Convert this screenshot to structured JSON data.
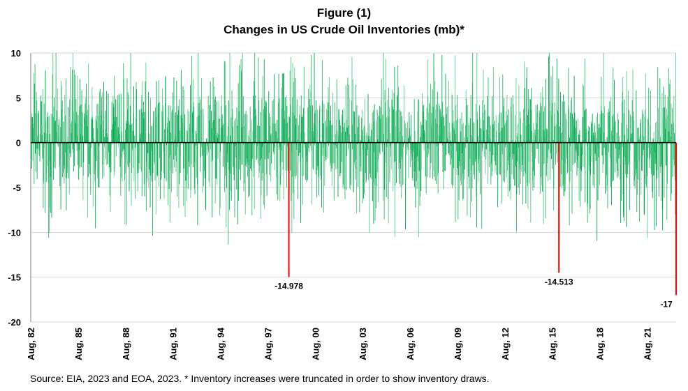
{
  "figure_label": "Figure (1)",
  "source_note": "Source: EIA, 2023 and EOA, 2023. * Inventory increases were truncated in order to show inventory draws.",
  "chart_data": {
    "type": "bar",
    "title": "Changes in US Crude Oil Inventories (mb)*",
    "xlabel": "",
    "ylabel": "",
    "ylim": [
      -20,
      10
    ],
    "yticks": [
      10,
      5,
      0,
      -5,
      -10,
      -15,
      -20
    ],
    "x_range": [
      "1982-08",
      "2023-06"
    ],
    "xtick_labels": [
      "Aug, 82",
      "Aug, 85",
      "Aug, 88",
      "Aug, 91",
      "Aug, 94",
      "Aug, 97",
      "Aug, 00",
      "Aug, 03",
      "Aug, 06",
      "Aug, 09",
      "Aug, 12",
      "Aug, 15",
      "Aug, 18",
      "Aug, 21"
    ],
    "grid": "horizontal",
    "legend": "none",
    "colors": {
      "weekly_change": "#00b050",
      "record_draw": "#ff0000"
    },
    "series": [
      {
        "values_description_only": true,
        "approx_weekly_changes_sample": [
          3.1,
          -2.4,
          5.2,
          -6.8,
          1.9,
          -4.3,
          8.7,
          -1.2,
          2.6,
          -9.4,
          4.8,
          -3.5,
          6.1,
          -7.9,
          0.8,
          -2.2
        ]
      }
    ],
    "highlighted_draws": [
      {
        "date": "1998-12",
        "value": -14.978,
        "label": "-14.978"
      },
      {
        "date": "2016-01",
        "value": -14.513,
        "label": "-14.513"
      },
      {
        "date": "2023-06",
        "value": -17,
        "label": "-17"
      }
    ]
  }
}
